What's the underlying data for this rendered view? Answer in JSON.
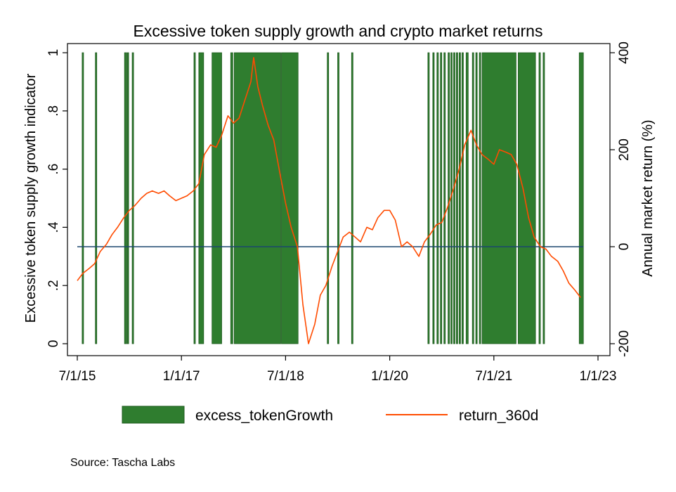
{
  "chart_data": {
    "type": "bar+line",
    "title": "Excessive token supply growth and crypto market returns",
    "xlabel": "",
    "ylabel_left": "Excessive token supply growth indicator",
    "ylabel_right": "Annual market return (%)",
    "x_ticks": [
      "7/1/15",
      "1/1/17",
      "7/1/18",
      "1/1/20",
      "7/1/21",
      "1/1/23"
    ],
    "x_tick_years": [
      2015.5,
      2017.0,
      2018.5,
      2020.0,
      2021.5,
      2023.0
    ],
    "xlim": [
      2015.45,
      2023.0
    ],
    "ylim_left": [
      0,
      1
    ],
    "y_ticks_left": [
      {
        "value": 0,
        "label": "0"
      },
      {
        "value": 0.2,
        "label": ".2"
      },
      {
        "value": 0.4,
        "label": ".4"
      },
      {
        "value": 0.6,
        "label": ".6"
      },
      {
        "value": 0.8,
        "label": ".8"
      },
      {
        "value": 1,
        "label": "1"
      }
    ],
    "ylim_right": [
      -200,
      400
    ],
    "y_ticks_right": [
      {
        "value": -200,
        "label": "-200"
      },
      {
        "value": 0,
        "label": "0"
      },
      {
        "value": 200,
        "label": "200"
      },
      {
        "value": 400,
        "label": "400"
      }
    ],
    "zero_line": 0,
    "series": [
      {
        "name": "excess_tokenGrowth",
        "kind": "bar",
        "color": "#2f7d2f",
        "value": 1,
        "active_periods": [
          [
            2015.57,
            2015.59
          ],
          [
            2015.76,
            2015.78
          ],
          [
            2016.18,
            2016.21
          ],
          [
            2016.22,
            2016.24
          ],
          [
            2016.29,
            2016.31
          ],
          [
            2017.18,
            2017.2
          ],
          [
            2017.25,
            2017.32
          ],
          [
            2017.44,
            2017.58
          ],
          [
            2017.71,
            2017.74
          ],
          [
            2017.76,
            2018.43
          ],
          [
            2018.44,
            2018.68
          ],
          [
            2019.1,
            2019.12
          ],
          [
            2019.25,
            2019.27
          ],
          [
            2019.45,
            2019.47
          ],
          [
            2020.55,
            2020.57
          ],
          [
            2020.62,
            2020.64
          ],
          [
            2020.68,
            2020.7
          ],
          [
            2020.73,
            2020.75
          ],
          [
            2020.78,
            2020.8
          ],
          [
            2020.84,
            2020.86
          ],
          [
            2020.88,
            2020.9
          ],
          [
            2020.92,
            2020.94
          ],
          [
            2020.96,
            2020.98
          ],
          [
            2021.0,
            2021.02
          ],
          [
            2021.04,
            2021.06
          ],
          [
            2021.1,
            2021.13
          ],
          [
            2021.19,
            2021.21
          ],
          [
            2021.24,
            2021.26
          ],
          [
            2021.29,
            2021.31
          ],
          [
            2021.33,
            2021.82
          ],
          [
            2021.85,
            2022.1
          ],
          [
            2022.15,
            2022.17
          ],
          [
            2022.21,
            2022.23
          ],
          [
            2022.73,
            2022.79
          ]
        ]
      },
      {
        "name": "return_360d",
        "kind": "line",
        "color": "#ff4b00",
        "points": [
          [
            2015.5,
            -70
          ],
          [
            2015.58,
            -55
          ],
          [
            2015.67,
            -45
          ],
          [
            2015.75,
            -35
          ],
          [
            2015.83,
            -10
          ],
          [
            2015.92,
            5
          ],
          [
            2016.0,
            25
          ],
          [
            2016.08,
            40
          ],
          [
            2016.17,
            60
          ],
          [
            2016.25,
            75
          ],
          [
            2016.33,
            85
          ],
          [
            2016.42,
            100
          ],
          [
            2016.5,
            110
          ],
          [
            2016.58,
            115
          ],
          [
            2016.67,
            110
          ],
          [
            2016.75,
            115
          ],
          [
            2016.83,
            105
          ],
          [
            2016.92,
            95
          ],
          [
            2017.0,
            100
          ],
          [
            2017.08,
            105
          ],
          [
            2017.17,
            115
          ],
          [
            2017.25,
            130
          ],
          [
            2017.33,
            190
          ],
          [
            2017.42,
            210
          ],
          [
            2017.5,
            205
          ],
          [
            2017.58,
            230
          ],
          [
            2017.67,
            270
          ],
          [
            2017.75,
            255
          ],
          [
            2017.83,
            265
          ],
          [
            2017.92,
            305
          ],
          [
            2018.0,
            340
          ],
          [
            2018.04,
            390
          ],
          [
            2018.1,
            330
          ],
          [
            2018.17,
            290
          ],
          [
            2018.25,
            250
          ],
          [
            2018.33,
            220
          ],
          [
            2018.42,
            150
          ],
          [
            2018.5,
            90
          ],
          [
            2018.58,
            40
          ],
          [
            2018.67,
            0
          ],
          [
            2018.75,
            -120
          ],
          [
            2018.83,
            -200
          ],
          [
            2018.92,
            -160
          ],
          [
            2019.0,
            -100
          ],
          [
            2019.08,
            -80
          ],
          [
            2019.17,
            -40
          ],
          [
            2019.25,
            -10
          ],
          [
            2019.33,
            20
          ],
          [
            2019.42,
            30
          ],
          [
            2019.5,
            20
          ],
          [
            2019.58,
            10
          ],
          [
            2019.67,
            40
          ],
          [
            2019.75,
            35
          ],
          [
            2019.83,
            60
          ],
          [
            2019.92,
            75
          ],
          [
            2020.0,
            75
          ],
          [
            2020.08,
            55
          ],
          [
            2020.17,
            0
          ],
          [
            2020.25,
            10
          ],
          [
            2020.33,
            0
          ],
          [
            2020.42,
            -20
          ],
          [
            2020.5,
            10
          ],
          [
            2020.58,
            25
          ],
          [
            2020.67,
            45
          ],
          [
            2020.75,
            50
          ],
          [
            2020.83,
            80
          ],
          [
            2020.92,
            120
          ],
          [
            2021.0,
            160
          ],
          [
            2021.08,
            210
          ],
          [
            2021.17,
            240
          ],
          [
            2021.25,
            210
          ],
          [
            2021.33,
            190
          ],
          [
            2021.42,
            180
          ],
          [
            2021.5,
            170
          ],
          [
            2021.58,
            200
          ],
          [
            2021.67,
            195
          ],
          [
            2021.75,
            190
          ],
          [
            2021.83,
            170
          ],
          [
            2021.92,
            120
          ],
          [
            2022.0,
            60
          ],
          [
            2022.08,
            20
          ],
          [
            2022.17,
            0
          ],
          [
            2022.25,
            -5
          ],
          [
            2022.33,
            -20
          ],
          [
            2022.42,
            -30
          ],
          [
            2022.5,
            -50
          ],
          [
            2022.58,
            -75
          ],
          [
            2022.67,
            -90
          ],
          [
            2022.75,
            -105
          ]
        ]
      }
    ],
    "legend": {
      "placement": "bottom",
      "entries": [
        {
          "label": "excess_tokenGrowth",
          "symbol": "bar",
          "color": "#2f7d2f"
        },
        {
          "label": "return_360d",
          "symbol": "line",
          "color": "#ff4b00"
        }
      ]
    },
    "zero_line_color": "#1a476f",
    "grid": false
  },
  "source": "Source: Tascha Labs"
}
